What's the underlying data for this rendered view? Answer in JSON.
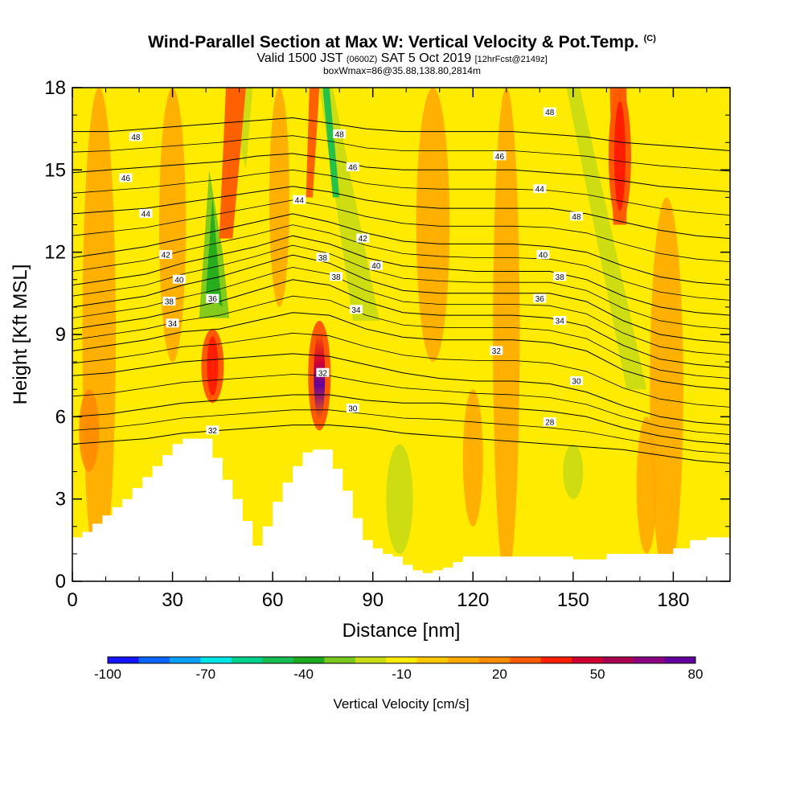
{
  "header": {
    "title": "Wind-Parallel Section at Max W: Vertical Velocity & Pot.Temp.",
    "copyright": "(C)",
    "valid_prefix": "Valid 1500 JST",
    "valid_utc": "(0600Z)",
    "valid_date": "SAT 5 Oct 2019",
    "forecast": "[12hrFcst@2149z]",
    "box_info": "boxWmax=86@35.88,138.80,2814m"
  },
  "chart_data": {
    "type": "heatmap",
    "xlabel": "Distance [nm]",
    "ylabel": "Height [Kft MSL]",
    "xlim": [
      0,
      197
    ],
    "ylim": [
      0,
      18
    ],
    "xticks": [
      0,
      30,
      60,
      90,
      120,
      150,
      180
    ],
    "yticks": [
      0,
      3,
      6,
      9,
      12,
      15,
      18
    ],
    "colorbar": {
      "label": "Vertical Velocity [cm/s]",
      "tick_labels": [
        -100,
        -70,
        -40,
        -10,
        20,
        50,
        80
      ],
      "levels": [
        -100,
        -90,
        -80,
        -70,
        -60,
        -50,
        -40,
        -30,
        -20,
        -10,
        0,
        10,
        20,
        30,
        40,
        50,
        60,
        70,
        80
      ],
      "colors": [
        "#1414ff",
        "#0a64ff",
        "#0aa0ff",
        "#00e6e6",
        "#00d28c",
        "#14be50",
        "#1eaa1e",
        "#78c81e",
        "#c8dc14",
        "#ffeb00",
        "#ffc800",
        "#ffaa00",
        "#ff8c00",
        "#ff5a00",
        "#ff1e00",
        "#d20032",
        "#aa0050",
        "#8c0082",
        "#64009b"
      ]
    },
    "updrafts": [
      {
        "name": "",
        "x": 42,
        "y_bottom": 6.5,
        "y_top": 9.2,
        "value": 45
      },
      {
        "name": "",
        "x": 74,
        "y_bottom": 5.5,
        "y_top": 9.5,
        "value": 78
      },
      {
        "name": "",
        "x": 164,
        "y_bottom": 13.0,
        "y_top": 18.0,
        "value": 40
      }
    ],
    "terrain_profile": {
      "x": [
        0,
        3,
        6,
        9,
        12,
        15,
        18,
        21,
        24,
        27,
        30,
        33,
        36,
        39,
        42,
        45,
        48,
        51,
        54,
        57,
        60,
        63,
        66,
        69,
        72,
        75,
        78,
        81,
        84,
        87,
        90,
        93,
        96,
        99,
        102,
        105,
        108,
        111,
        114,
        117,
        120,
        125,
        130,
        135,
        140,
        145,
        150,
        155,
        160,
        165,
        170,
        175,
        180,
        185,
        190,
        197
      ],
      "height": [
        1.6,
        1.8,
        2.1,
        2.4,
        2.7,
        3.0,
        3.4,
        3.8,
        4.2,
        4.6,
        5.0,
        5.2,
        5.2,
        5.2,
        4.5,
        3.7,
        3.0,
        2.2,
        1.3,
        2.0,
        2.9,
        3.6,
        4.2,
        4.7,
        4.8,
        4.8,
        4.1,
        3.3,
        2.3,
        1.5,
        1.2,
        1.0,
        0.9,
        0.6,
        0.4,
        0.3,
        0.4,
        0.5,
        0.7,
        0.9,
        0.9,
        0.9,
        0.9,
        0.9,
        0.9,
        0.9,
        0.8,
        0.8,
        1.0,
        1.0,
        1.0,
        1.0,
        1.2,
        1.5,
        1.6,
        1.7
      ]
    },
    "isentropes": [
      {
        "theta": 28,
        "y": [
          5.0,
          5.1,
          5.2,
          5.4,
          5.5,
          5.6,
          5.7,
          5.7,
          5.6,
          5.4,
          5.3,
          5.2,
          5.1,
          5.0,
          4.9,
          4.8,
          4.6,
          4.4,
          4.3
        ]
      },
      {
        "theta": 30,
        "y": [
          6.0,
          6.1,
          6.3,
          6.5,
          6.6,
          6.7,
          6.8,
          6.8,
          6.6,
          6.5,
          6.5,
          6.4,
          6.3,
          6.2,
          6.0,
          5.6,
          5.3,
          5.1,
          5.0
        ]
      },
      {
        "theta": 32,
        "y": [
          7.5,
          7.6,
          7.8,
          8.0,
          8.1,
          8.2,
          8.3,
          8.2,
          7.9,
          7.6,
          7.4,
          7.3,
          7.3,
          7.2,
          6.9,
          6.4,
          6.0,
          5.8,
          5.7
        ]
      },
      {
        "theta": 34,
        "y": [
          8.4,
          8.6,
          8.8,
          9.1,
          9.2,
          9.5,
          9.8,
          9.7,
          9.2,
          8.9,
          8.8,
          8.8,
          8.8,
          8.7,
          8.4,
          7.7,
          7.3,
          7.1,
          7.0
        ]
      },
      {
        "theta": 36,
        "y": [
          9.2,
          9.4,
          9.6,
          9.9,
          10.2,
          10.6,
          11.0,
          10.8,
          10.2,
          9.8,
          9.7,
          9.7,
          9.7,
          9.6,
          9.3,
          8.6,
          8.1,
          7.9,
          7.8
        ]
      },
      {
        "theta": 38,
        "y": [
          10.0,
          10.2,
          10.4,
          10.8,
          11.1,
          11.5,
          11.9,
          11.6,
          11.0,
          10.6,
          10.5,
          10.5,
          10.5,
          10.5,
          10.2,
          9.5,
          9.0,
          8.8,
          8.7
        ]
      },
      {
        "theta": 40,
        "y": [
          10.8,
          11.0,
          11.2,
          11.6,
          11.9,
          12.2,
          12.6,
          12.3,
          11.8,
          11.5,
          11.4,
          11.3,
          11.3,
          11.3,
          11.0,
          10.4,
          10.0,
          9.8,
          9.7
        ]
      },
      {
        "theta": 42,
        "y": [
          11.8,
          12.0,
          12.2,
          12.5,
          12.8,
          13.1,
          13.4,
          13.1,
          12.7,
          12.4,
          12.3,
          12.3,
          12.3,
          12.2,
          12.0,
          11.5,
          11.1,
          10.9,
          10.8
        ]
      },
      {
        "theta": 44,
        "y": [
          13.4,
          13.5,
          13.6,
          13.8,
          14.0,
          14.2,
          14.4,
          14.2,
          13.9,
          13.7,
          13.6,
          13.6,
          13.6,
          13.6,
          13.4,
          13.1,
          12.8,
          12.6,
          12.5
        ]
      },
      {
        "theta": 46,
        "y": [
          14.9,
          15.0,
          15.1,
          15.2,
          15.3,
          15.5,
          15.6,
          15.4,
          15.1,
          15.0,
          15.0,
          15.0,
          15.0,
          14.9,
          14.8,
          14.6,
          14.4,
          14.3,
          14.2
        ]
      },
      {
        "theta": 48,
        "y": [
          16.4,
          16.4,
          16.5,
          16.6,
          16.7,
          16.8,
          16.9,
          16.7,
          16.5,
          16.4,
          16.4,
          16.4,
          16.4,
          16.3,
          16.2,
          16.0,
          15.9,
          15.8,
          15.7
        ]
      }
    ],
    "isentrope_x": [
      0,
      11,
      22,
      33,
      44,
      55,
      66,
      77,
      88,
      99,
      110,
      121,
      132,
      143,
      154,
      165,
      176,
      187,
      197
    ],
    "contour_labels": [
      {
        "text": "48",
        "x": 19,
        "y": 16.2
      },
      {
        "text": "46",
        "x": 16,
        "y": 14.7
      },
      {
        "text": "44",
        "x": 22,
        "y": 13.4
      },
      {
        "text": "42",
        "x": 28,
        "y": 11.9
      },
      {
        "text": "40",
        "x": 32,
        "y": 11.0
      },
      {
        "text": "38",
        "x": 29,
        "y": 10.2
      },
      {
        "text": "36",
        "x": 42,
        "y": 10.3
      },
      {
        "text": "34",
        "x": 30,
        "y": 9.4
      },
      {
        "text": "32",
        "x": 42,
        "y": 5.5
      },
      {
        "text": "44",
        "x": 68,
        "y": 13.9
      },
      {
        "text": "48",
        "x": 80,
        "y": 16.3
      },
      {
        "text": "46",
        "x": 84,
        "y": 15.1
      },
      {
        "text": "42",
        "x": 87,
        "y": 12.5
      },
      {
        "text": "38",
        "x": 75,
        "y": 11.8
      },
      {
        "text": "40",
        "x": 91,
        "y": 11.5
      },
      {
        "text": "38",
        "x": 79,
        "y": 11.1
      },
      {
        "text": "34",
        "x": 85,
        "y": 9.9
      },
      {
        "text": "32",
        "x": 75,
        "y": 7.6
      },
      {
        "text": "30",
        "x": 84,
        "y": 6.3
      },
      {
        "text": "48",
        "x": 143,
        "y": 17.1
      },
      {
        "text": "46",
        "x": 128,
        "y": 15.5
      },
      {
        "text": "44",
        "x": 140,
        "y": 14.3
      },
      {
        "text": "48",
        "x": 151,
        "y": 13.3
      },
      {
        "text": "40",
        "x": 141,
        "y": 11.9
      },
      {
        "text": "38",
        "x": 146,
        "y": 11.1
      },
      {
        "text": "36",
        "x": 140,
        "y": 10.3
      },
      {
        "text": "34",
        "x": 146,
        "y": 9.5
      },
      {
        "text": "32",
        "x": 127,
        "y": 8.4
      },
      {
        "text": "30",
        "x": 151,
        "y": 7.3
      },
      {
        "text": "28",
        "x": 143,
        "y": 5.8
      }
    ]
  }
}
